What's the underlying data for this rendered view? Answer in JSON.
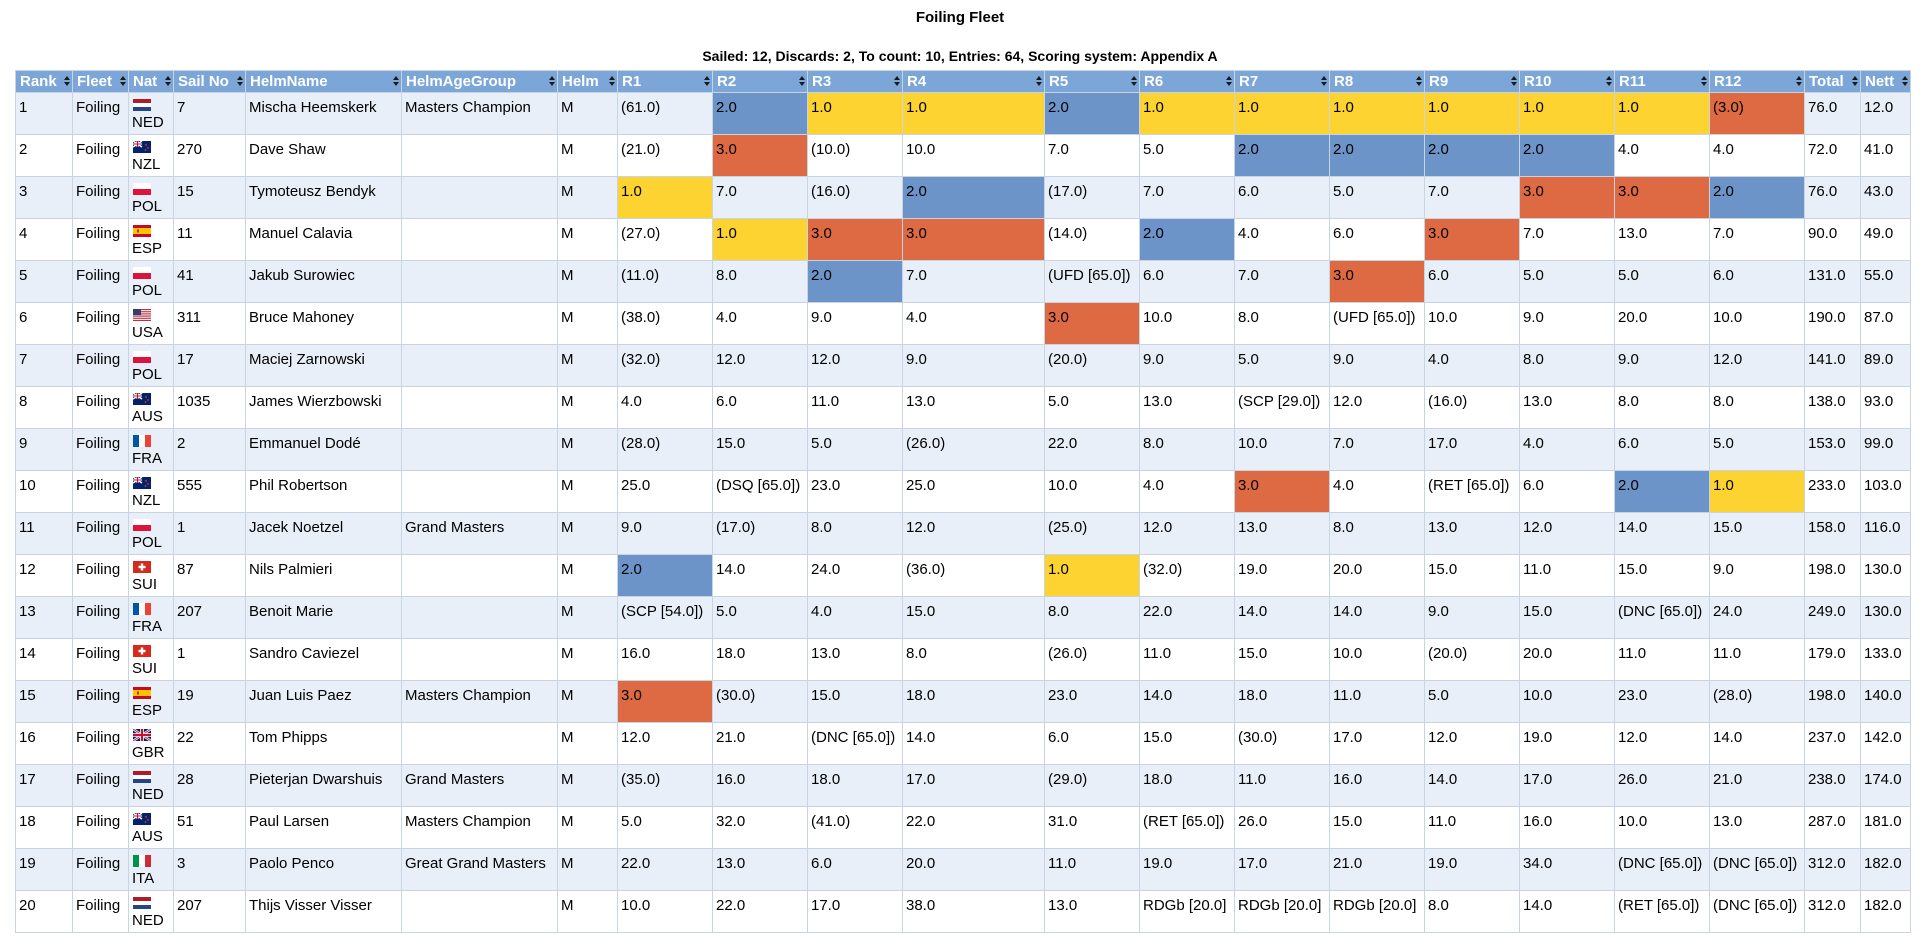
{
  "title": "Foiling Fleet",
  "subtitle": "Sailed: 12, Discards: 2, To count: 10, Entries: 64, Scoring system: Appendix A",
  "headers": [
    "Rank",
    "Fleet",
    "Nat",
    "Sail No",
    "HelmName",
    "HelmAgeGroup",
    "Helm",
    "R1",
    "R2",
    "R3",
    "R4",
    "R5",
    "R6",
    "R7",
    "R8",
    "R9",
    "R10",
    "R11",
    "R12",
    "Total",
    "Nett"
  ],
  "colors": {
    "gold": "#fcd330",
    "silver": "#6d94c8",
    "bronze": "#dd6a43",
    "header": "#7ca6d8",
    "row_alt": "#e8eff8"
  },
  "rows": [
    {
      "rank": "1",
      "fleet": "Foiling",
      "nat": "NED",
      "flag": "flag-netherlands-icon",
      "sail": "7",
      "helm_name": "Mischa Heemskerk",
      "age_group": "Masters Champion",
      "helm": "M",
      "races": [
        "(61.0)",
        "2.0",
        "1.0",
        "1.0",
        "2.0",
        "1.0",
        "1.0",
        "1.0",
        "1.0",
        "1.0",
        "1.0",
        "(3.0)"
      ],
      "total": "76.0",
      "nett": "12.0"
    },
    {
      "rank": "2",
      "fleet": "Foiling",
      "nat": "NZL",
      "flag": "flag-new-zealand-icon",
      "sail": "270",
      "helm_name": "Dave Shaw",
      "age_group": "",
      "helm": "M",
      "races": [
        "(21.0)",
        "3.0",
        "(10.0)",
        "10.0",
        "7.0",
        "5.0",
        "2.0",
        "2.0",
        "2.0",
        "2.0",
        "4.0",
        "4.0"
      ],
      "total": "72.0",
      "nett": "41.0"
    },
    {
      "rank": "3",
      "fleet": "Foiling",
      "nat": "POL",
      "flag": "flag-poland-icon",
      "sail": "15",
      "helm_name": "Tymoteusz Bendyk",
      "age_group": "",
      "helm": "M",
      "races": [
        "1.0",
        "7.0",
        "(16.0)",
        "2.0",
        "(17.0)",
        "7.0",
        "6.0",
        "5.0",
        "7.0",
        "3.0",
        "3.0",
        "2.0"
      ],
      "total": "76.0",
      "nett": "43.0"
    },
    {
      "rank": "4",
      "fleet": "Foiling",
      "nat": "ESP",
      "flag": "flag-spain-icon",
      "sail": "11",
      "helm_name": "Manuel Calavia",
      "age_group": "",
      "helm": "M",
      "races": [
        "(27.0)",
        "1.0",
        "3.0",
        "3.0",
        "(14.0)",
        "2.0",
        "4.0",
        "6.0",
        "3.0",
        "7.0",
        "13.0",
        "7.0"
      ],
      "total": "90.0",
      "nett": "49.0"
    },
    {
      "rank": "5",
      "fleet": "Foiling",
      "nat": "POL",
      "flag": "flag-poland-icon",
      "sail": "41",
      "helm_name": "Jakub Surowiec",
      "age_group": "",
      "helm": "M",
      "races": [
        "(11.0)",
        "8.0",
        "2.0",
        "7.0",
        "(UFD [65.0])",
        "6.0",
        "7.0",
        "3.0",
        "6.0",
        "5.0",
        "5.0",
        "6.0"
      ],
      "total": "131.0",
      "nett": "55.0"
    },
    {
      "rank": "6",
      "fleet": "Foiling",
      "nat": "USA",
      "flag": "flag-usa-icon",
      "sail": "311",
      "helm_name": "Bruce Mahoney",
      "age_group": "",
      "helm": "M",
      "races": [
        "(38.0)",
        "4.0",
        "9.0",
        "4.0",
        "3.0",
        "10.0",
        "8.0",
        "(UFD [65.0])",
        "10.0",
        "9.0",
        "20.0",
        "10.0"
      ],
      "total": "190.0",
      "nett": "87.0"
    },
    {
      "rank": "7",
      "fleet": "Foiling",
      "nat": "POL",
      "flag": "flag-poland-icon",
      "sail": "17",
      "helm_name": "Maciej Zarnowski",
      "age_group": "",
      "helm": "M",
      "races": [
        "(32.0)",
        "12.0",
        "12.0",
        "9.0",
        "(20.0)",
        "9.0",
        "5.0",
        "9.0",
        "4.0",
        "8.0",
        "9.0",
        "12.0"
      ],
      "total": "141.0",
      "nett": "89.0"
    },
    {
      "rank": "8",
      "fleet": "Foiling",
      "nat": "AUS",
      "flag": "flag-australia-icon",
      "sail": "1035",
      "helm_name": "James Wierzbowski",
      "age_group": "",
      "helm": "M",
      "races": [
        "4.0",
        "6.0",
        "11.0",
        "13.0",
        "5.0",
        "13.0",
        "(SCP [29.0])",
        "12.0",
        "(16.0)",
        "13.0",
        "8.0",
        "8.0"
      ],
      "total": "138.0",
      "nett": "93.0"
    },
    {
      "rank": "9",
      "fleet": "Foiling",
      "nat": "FRA",
      "flag": "flag-france-icon",
      "sail": "2",
      "helm_name": "Emmanuel Dodé",
      "age_group": "",
      "helm": "M",
      "races": [
        "(28.0)",
        "15.0",
        "5.0",
        "(26.0)",
        "22.0",
        "8.0",
        "10.0",
        "7.0",
        "17.0",
        "4.0",
        "6.0",
        "5.0"
      ],
      "total": "153.0",
      "nett": "99.0"
    },
    {
      "rank": "10",
      "fleet": "Foiling",
      "nat": "NZL",
      "flag": "flag-new-zealand-icon",
      "sail": "555",
      "helm_name": "Phil Robertson",
      "age_group": "",
      "helm": "M",
      "races": [
        "25.0",
        "(DSQ [65.0])",
        "23.0",
        "25.0",
        "10.0",
        "4.0",
        "3.0",
        "4.0",
        "(RET [65.0])",
        "6.0",
        "2.0",
        "1.0"
      ],
      "total": "233.0",
      "nett": "103.0"
    },
    {
      "rank": "11",
      "fleet": "Foiling",
      "nat": "POL",
      "flag": "flag-poland-icon",
      "sail": "1",
      "helm_name": "Jacek Noetzel",
      "age_group": "Grand Masters",
      "helm": "M",
      "races": [
        "9.0",
        "(17.0)",
        "8.0",
        "12.0",
        "(25.0)",
        "12.0",
        "13.0",
        "8.0",
        "13.0",
        "12.0",
        "14.0",
        "15.0"
      ],
      "total": "158.0",
      "nett": "116.0"
    },
    {
      "rank": "12",
      "fleet": "Foiling",
      "nat": "SUI",
      "flag": "flag-switzerland-icon",
      "sail": "87",
      "helm_name": "Nils Palmieri",
      "age_group": "",
      "helm": "M",
      "races": [
        "2.0",
        "14.0",
        "24.0",
        "(36.0)",
        "1.0",
        "(32.0)",
        "19.0",
        "20.0",
        "15.0",
        "11.0",
        "15.0",
        "9.0"
      ],
      "total": "198.0",
      "nett": "130.0"
    },
    {
      "rank": "13",
      "fleet": "Foiling",
      "nat": "FRA",
      "flag": "flag-france-icon",
      "sail": "207",
      "helm_name": "Benoit Marie",
      "age_group": "",
      "helm": "M",
      "races": [
        "(SCP [54.0])",
        "5.0",
        "4.0",
        "15.0",
        "8.0",
        "22.0",
        "14.0",
        "14.0",
        "9.0",
        "15.0",
        "(DNC [65.0])",
        "24.0"
      ],
      "total": "249.0",
      "nett": "130.0"
    },
    {
      "rank": "14",
      "fleet": "Foiling",
      "nat": "SUI",
      "flag": "flag-switzerland-icon",
      "sail": "1",
      "helm_name": "Sandro Caviezel",
      "age_group": "",
      "helm": "M",
      "races": [
        "16.0",
        "18.0",
        "13.0",
        "8.0",
        "(26.0)",
        "11.0",
        "15.0",
        "10.0",
        "(20.0)",
        "20.0",
        "11.0",
        "11.0"
      ],
      "total": "179.0",
      "nett": "133.0"
    },
    {
      "rank": "15",
      "fleet": "Foiling",
      "nat": "ESP",
      "flag": "flag-spain-icon",
      "sail": "19",
      "helm_name": "Juan Luis Paez",
      "age_group": "Masters Champion",
      "helm": "M",
      "races": [
        "3.0",
        "(30.0)",
        "15.0",
        "18.0",
        "23.0",
        "14.0",
        "18.0",
        "11.0",
        "5.0",
        "10.0",
        "23.0",
        "(28.0)"
      ],
      "total": "198.0",
      "nett": "140.0"
    },
    {
      "rank": "16",
      "fleet": "Foiling",
      "nat": "GBR",
      "flag": "flag-uk-icon",
      "sail": "22",
      "helm_name": "Tom Phipps",
      "age_group": "",
      "helm": "M",
      "races": [
        "12.0",
        "21.0",
        "(DNC [65.0])",
        "14.0",
        "6.0",
        "15.0",
        "(30.0)",
        "17.0",
        "12.0",
        "19.0",
        "12.0",
        "14.0"
      ],
      "total": "237.0",
      "nett": "142.0"
    },
    {
      "rank": "17",
      "fleet": "Foiling",
      "nat": "NED",
      "flag": "flag-netherlands-icon",
      "sail": "28",
      "helm_name": "Pieterjan Dwarshuis",
      "age_group": "Grand Masters",
      "helm": "M",
      "races": [
        "(35.0)",
        "16.0",
        "18.0",
        "17.0",
        "(29.0)",
        "18.0",
        "11.0",
        "16.0",
        "14.0",
        "17.0",
        "26.0",
        "21.0"
      ],
      "total": "238.0",
      "nett": "174.0"
    },
    {
      "rank": "18",
      "fleet": "Foiling",
      "nat": "AUS",
      "flag": "flag-australia-icon",
      "sail": "51",
      "helm_name": "Paul Larsen",
      "age_group": "Masters Champion",
      "helm": "M",
      "races": [
        "5.0",
        "32.0",
        "(41.0)",
        "22.0",
        "31.0",
        "(RET [65.0])",
        "26.0",
        "15.0",
        "11.0",
        "16.0",
        "10.0",
        "13.0"
      ],
      "total": "287.0",
      "nett": "181.0"
    },
    {
      "rank": "19",
      "fleet": "Foiling",
      "nat": "ITA",
      "flag": "flag-italy-icon",
      "sail": "3",
      "helm_name": "Paolo Penco",
      "age_group": "Great Grand Masters",
      "helm": "M",
      "races": [
        "22.0",
        "13.0",
        "6.0",
        "20.0",
        "11.0",
        "19.0",
        "17.0",
        "21.0",
        "19.0",
        "34.0",
        "(DNC [65.0])",
        "(DNC [65.0])"
      ],
      "total": "312.0",
      "nett": "182.0"
    },
    {
      "rank": "20",
      "fleet": "Foiling",
      "nat": "NED",
      "flag": "flag-netherlands-icon",
      "sail": "207",
      "helm_name": "Thijs Visser Visser",
      "age_group": "",
      "helm": "M",
      "races": [
        "10.0",
        "22.0",
        "17.0",
        "38.0",
        "13.0",
        "RDGb [20.0]",
        "RDGb [20.0]",
        "RDGb [20.0]",
        "8.0",
        "14.0",
        "(RET [65.0])",
        "(DNC [65.0])"
      ],
      "total": "312.0",
      "nett": "182.0"
    }
  ]
}
